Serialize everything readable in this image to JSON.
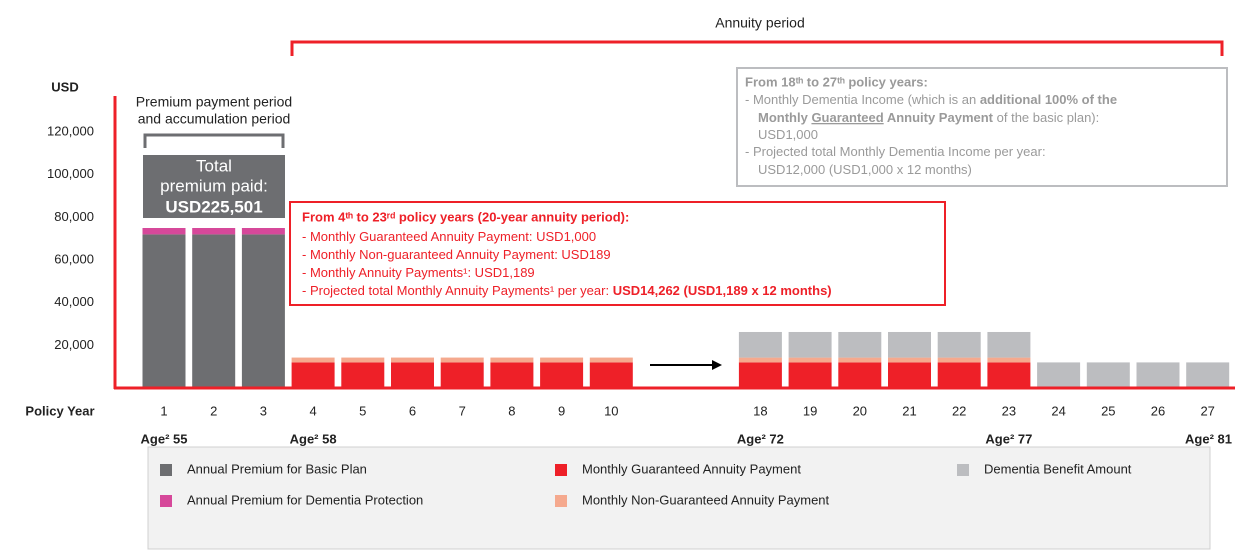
{
  "chart_data": {
    "type": "bar",
    "stacked": true,
    "title": "Annuity period",
    "y_axis_label": "USD",
    "x_axis_label": "Policy Year",
    "ylim": [
      0,
      135000
    ],
    "yticks": [
      {
        "value": 20000,
        "label": "20,000"
      },
      {
        "value": 40000,
        "label": "40,000"
      },
      {
        "value": 60000,
        "label": "60,000"
      },
      {
        "value": 80000,
        "label": "80,000"
      },
      {
        "value": 100000,
        "label": "100,000"
      },
      {
        "value": 120000,
        "label": "120,000"
      }
    ],
    "grid": false,
    "categories": [
      "1",
      "2",
      "3",
      "4",
      "5",
      "6",
      "7",
      "8",
      "9",
      "10",
      null,
      null,
      "18",
      "19",
      "20",
      "21",
      "22",
      "23",
      "24",
      "25",
      "26",
      "27"
    ],
    "series": [
      {
        "name": "Annual Premium for Basic Plan",
        "color": "#6d6e71",
        "values": [
          72000,
          72000,
          72000,
          null,
          null,
          null,
          null,
          null,
          null,
          null,
          null,
          null,
          null,
          null,
          null,
          null,
          null,
          null,
          null,
          null,
          null,
          null
        ]
      },
      {
        "name": "Annual Premium for Dementia Protection",
        "color": "#d6489a",
        "values": [
          3000,
          3000,
          3000,
          null,
          null,
          null,
          null,
          null,
          null,
          null,
          null,
          null,
          null,
          null,
          null,
          null,
          null,
          null,
          null,
          null,
          null,
          null
        ]
      },
      {
        "name": "Monthly Guaranteed Annuity Payment",
        "color": "#ee2028",
        "values": [
          null,
          null,
          null,
          12000,
          12000,
          12000,
          12000,
          12000,
          12000,
          12000,
          null,
          null,
          12000,
          12000,
          12000,
          12000,
          12000,
          12000,
          null,
          null,
          null,
          null
        ]
      },
      {
        "name": "Monthly Non-Guaranteed Annuity Payment",
        "color": "#f5a98e",
        "values": [
          null,
          null,
          null,
          2262,
          2262,
          2262,
          2262,
          2262,
          2262,
          2262,
          null,
          null,
          2262,
          2262,
          2262,
          2262,
          2262,
          2262,
          null,
          null,
          null,
          null
        ]
      },
      {
        "name": "Dementia Benefit Amount",
        "color": "#bcbdc0",
        "values": [
          null,
          null,
          null,
          null,
          null,
          null,
          null,
          null,
          null,
          null,
          null,
          null,
          12000,
          12000,
          12000,
          12000,
          12000,
          12000,
          12000,
          12000,
          12000,
          12000
        ]
      }
    ],
    "ages": [
      "Age² 55",
      "Age² 58",
      "Age² 72",
      "Age² 77",
      "Age² 81"
    ],
    "premium_period_label": [
      "Premium payment period",
      "and accumulation period"
    ],
    "total_box": [
      "Total",
      "premium paid:",
      "USD225,501"
    ],
    "annuity_box": {
      "title": "From 4ᵗʰ to 23ʳᵈ policy years (20-year annuity period):",
      "lines": [
        [
          {
            "text": "- Monthly Guaranteed Annuity Payment: USD1,000"
          }
        ],
        [
          {
            "text": "- Monthly Non-guaranteed Annuity Payment: USD189"
          }
        ],
        [
          {
            "text": "- Monthly Annuity Payments¹: USD1,189"
          }
        ],
        [
          {
            "text": "- Projected total Monthly Annuity Payments¹ per year: "
          },
          {
            "text": "USD14,262 (USD1,189 x 12 months)",
            "bold": true
          }
        ]
      ]
    },
    "dementia_box": {
      "title": "From 18ᵗʰ to 27ᵗʰ policy years:",
      "lines": [
        [
          {
            "text": "- Monthly Dementia Income (which is an "
          },
          {
            "text": "additional 100% of the",
            "bold": true
          }
        ],
        [
          {
            "text": "Monthly ",
            "bold": true
          },
          {
            "text": "Guaranteed",
            "bold": true,
            "underline": true
          },
          {
            "text": " Annuity Payment",
            "bold": true
          },
          {
            "text": " of the basic plan):"
          }
        ],
        [
          {
            "text": "USD1,000"
          }
        ],
        [
          {
            "text": "- Projected total Monthly Dementia Income per year:"
          }
        ],
        [
          {
            "text": "USD12,000 (USD1,000 x 12 months)"
          }
        ]
      ]
    }
  }
}
